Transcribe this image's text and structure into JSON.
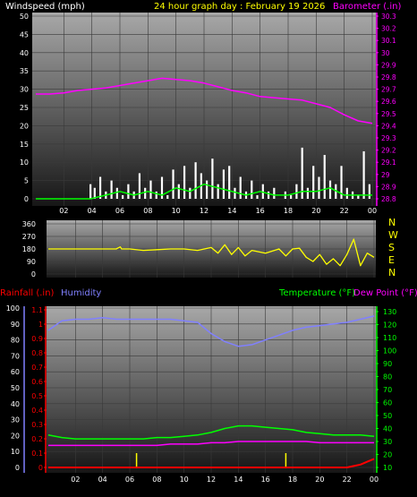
{
  "colors": {
    "background": "#000000",
    "panel_top": "#a8a8a8",
    "panel_bottom": "#161616",
    "wind_speed": "#ffffff",
    "wind_gust": "#cccccc",
    "wind_avg": "#00ff00",
    "barometer": "#ff00ff",
    "direction": "#ffff00",
    "humidity": "#8080ff",
    "rainfall": "#ff0000",
    "rain_bar": "#ffff00",
    "temperature": "#00ff00",
    "dew_point": "#ff00ff",
    "axis_text": "#ffffff"
  },
  "chart_data": [
    {
      "type": "line",
      "title": "24 hour graph day : February 19 2026",
      "x_ticks": [
        "02",
        "04",
        "06",
        "08",
        "10",
        "12",
        "14",
        "16",
        "18",
        "20",
        "22",
        "00"
      ],
      "left_axis": {
        "label": "Windspeed (mph)",
        "ticks": [
          "0",
          "5",
          "10",
          "15",
          "20",
          "25",
          "30",
          "35",
          "40",
          "45",
          "50"
        ],
        "ylim": [
          0,
          50
        ]
      },
      "right_axis": {
        "label": "Barometer (.in)",
        "ticks": [
          "28.8",
          "28.9",
          "29",
          "29.1",
          "29.2",
          "29.3",
          "29.4",
          "29.5",
          "29.6",
          "29.7",
          "29.8",
          "29.9",
          "30",
          "30.1",
          "30.2",
          "30.3"
        ],
        "ylim": [
          28.8,
          30.3
        ]
      },
      "grid": true,
      "series": [
        {
          "name": "Windspeed (mph)",
          "axis": "left",
          "style": "bars",
          "x": [
            0,
            2,
            3.9,
            4.2,
            4.6,
            5.0,
            5.4,
            5.8,
            6.2,
            6.6,
            7.0,
            7.4,
            7.8,
            8.2,
            8.6,
            9.0,
            9.4,
            9.8,
            10.2,
            10.6,
            11.0,
            11.4,
            11.8,
            12.2,
            12.6,
            13.0,
            13.4,
            13.8,
            14.2,
            14.6,
            15.0,
            15.4,
            15.8,
            16.2,
            16.6,
            17.0,
            17.4,
            17.8,
            18.2,
            18.6,
            19.0,
            19.4,
            19.8,
            20.2,
            20.6,
            21.0,
            21.4,
            21.8,
            22.2,
            22.6,
            23.0,
            23.4,
            23.8
          ],
          "y": [
            0,
            0,
            4,
            3,
            6,
            2,
            5,
            3,
            1,
            4,
            2,
            7,
            3,
            5,
            2,
            6,
            1,
            8,
            4,
            9,
            3,
            10,
            7,
            5,
            11,
            4,
            8,
            9,
            3,
            6,
            2,
            5,
            1,
            4,
            2,
            3,
            0,
            2,
            1,
            4,
            14,
            3,
            9,
            6,
            12,
            5,
            4,
            9,
            3,
            2,
            1,
            13,
            4
          ]
        },
        {
          "name": "Wind average",
          "axis": "left",
          "style": "line",
          "x": [
            0,
            3.9,
            5,
            6,
            7,
            8,
            9,
            10,
            11,
            12,
            13,
            14,
            15,
            16,
            17,
            18,
            19,
            20,
            21,
            22,
            23,
            24
          ],
          "y": [
            0,
            0,
            1,
            2,
            1,
            2,
            1,
            3,
            2,
            4,
            3,
            2,
            1,
            2,
            1,
            1,
            2,
            2,
            3,
            1,
            1,
            1
          ]
        },
        {
          "name": "Barometer (.in)",
          "axis": "right",
          "style": "line",
          "x": [
            0,
            1,
            2,
            3,
            4,
            5,
            6,
            7,
            8,
            9,
            10,
            11,
            12,
            13,
            14,
            15,
            16,
            17,
            18,
            19,
            20,
            21,
            22,
            23,
            24
          ],
          "y": [
            29.66,
            29.66,
            29.67,
            29.69,
            29.7,
            29.71,
            29.73,
            29.75,
            29.77,
            29.79,
            29.78,
            29.77,
            29.75,
            29.72,
            29.69,
            29.67,
            29.64,
            29.63,
            29.62,
            29.61,
            29.58,
            29.55,
            29.49,
            29.44,
            29.42
          ]
        }
      ]
    },
    {
      "type": "line",
      "title": "",
      "left_axis": {
        "label": "",
        "ticks": [
          "0",
          "90",
          "180",
          "270",
          "360"
        ],
        "ylim": [
          0,
          360
        ]
      },
      "right_axis": {
        "label": "",
        "ticks": [
          "N",
          "W",
          "S",
          "E",
          "N"
        ]
      },
      "grid": true,
      "series": [
        {
          "name": "",
          "axis": "left",
          "style": "line",
          "x": [
            0,
            1,
            2,
            3,
            4,
            5,
            5.3,
            5.4,
            6,
            7,
            8,
            9,
            10,
            11,
            12,
            12.5,
            13,
            13.5,
            14,
            14.5,
            15,
            16,
            17,
            17.5,
            18,
            18.5,
            19,
            19.5,
            20,
            20.5,
            21,
            21.5,
            22,
            22.5,
            23,
            23.5,
            24
          ],
          "y": [
            180,
            180,
            180,
            180,
            180,
            180,
            195,
            180,
            180,
            170,
            175,
            180,
            180,
            170,
            190,
            150,
            210,
            140,
            190,
            130,
            170,
            150,
            180,
            130,
            180,
            185,
            120,
            90,
            140,
            70,
            110,
            60,
            140,
            250,
            60,
            150,
            120
          ]
        }
      ]
    },
    {
      "type": "line",
      "title": "",
      "x_ticks": [
        "02",
        "04",
        "06",
        "08",
        "10",
        "12",
        "14",
        "16",
        "18",
        "20",
        "22",
        "00"
      ],
      "left_axis": {
        "label": "Humidity",
        "ticks": [
          "0",
          "10",
          "20",
          "30",
          "40",
          "50",
          "60",
          "70",
          "80",
          "90",
          "100"
        ],
        "ylim": [
          0,
          100
        ]
      },
      "rain_axis": {
        "label": "Rainfall (.in)",
        "ticks": [
          "0",
          "0.1",
          "0.2",
          "0.3",
          "0.4",
          "0.5",
          "0.6",
          "0.7",
          "0.8",
          "0.9",
          "1",
          "1.1"
        ],
        "ylim": [
          0,
          1.1
        ]
      },
      "right_axis": {
        "label": "Temperature (°F)",
        "ticks": [
          "10",
          "20",
          "30",
          "40",
          "50",
          "60",
          "70",
          "80",
          "90",
          "100",
          "110",
          "120",
          "130"
        ],
        "ylim": [
          10,
          130
        ]
      },
      "right_label_2": "Dew Point (°F)",
      "grid": true,
      "series": [
        {
          "name": "Humidity",
          "axis": "left",
          "style": "line",
          "x": [
            0,
            1,
            2,
            3,
            4,
            5,
            6,
            7,
            8,
            9,
            10,
            11,
            12,
            13,
            14,
            15,
            16,
            17,
            18,
            19,
            20,
            21,
            22,
            23,
            24
          ],
          "y": [
            86,
            92,
            93,
            93,
            94,
            93,
            93,
            93,
            93,
            93,
            92,
            91,
            84,
            79,
            76,
            77,
            80,
            83,
            86,
            88,
            89,
            90,
            91,
            93,
            95
          ]
        },
        {
          "name": "Temperature (°F)",
          "axis": "right",
          "style": "line",
          "x": [
            0,
            1,
            2,
            3,
            4,
            5,
            6,
            7,
            8,
            9,
            10,
            11,
            12,
            13,
            14,
            15,
            16,
            17,
            18,
            19,
            20,
            21,
            22,
            23,
            24
          ],
          "y": [
            35,
            33,
            32,
            32,
            32,
            32,
            32,
            32,
            33,
            33,
            34,
            35,
            37,
            40,
            42,
            42,
            41,
            40,
            39,
            37,
            36,
            35,
            35,
            35,
            34
          ]
        },
        {
          "name": "Dew Point (°F)",
          "axis": "right",
          "style": "line",
          "x": [
            0,
            1,
            2,
            3,
            4,
            5,
            6,
            7,
            8,
            9,
            10,
            11,
            12,
            13,
            14,
            15,
            16,
            17,
            18,
            19,
            20,
            21,
            22,
            23,
            24
          ],
          "y": [
            27,
            27,
            27,
            27,
            27,
            27,
            27,
            27,
            27,
            28,
            28,
            28,
            29,
            29,
            30,
            30,
            30,
            30,
            30,
            30,
            29,
            29,
            29,
            29,
            29
          ]
        },
        {
          "name": "Rainfall (.in)",
          "axis": "rain",
          "style": "line",
          "x": [
            0,
            22,
            22.5,
            23,
            23.5,
            24
          ],
          "y": [
            0,
            0,
            0.01,
            0.02,
            0.04,
            0.06
          ]
        },
        {
          "name": "Rain rate",
          "axis": "rain",
          "style": "bars",
          "x": [
            6.5,
            17.5
          ],
          "y": [
            0.1,
            0.1
          ]
        }
      ]
    }
  ]
}
